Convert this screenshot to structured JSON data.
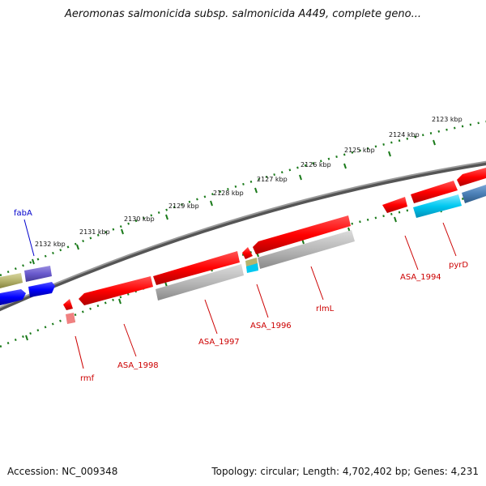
{
  "title": "Aeromonas salmonicida subsp. salmonicida A449, complete geno...",
  "footer": {
    "accession": "Accession: NC_009348",
    "topology": "Topology: circular; Length: 4,702,402 bp; Genes: 4,231"
  },
  "ticks": [
    "2123 kbp",
    "2124 kbp",
    "2125 kbp",
    "2126 kbp",
    "2127 kbp",
    "2128 kbp",
    "2129 kbp",
    "2130 kbp",
    "2131 kbp",
    "2132 kbp"
  ],
  "genes": {
    "fabA": "fabA",
    "rmf": "rmf",
    "asa1998": "ASA_1998",
    "asa1997": "ASA_1997",
    "asa1996": "ASA_1996",
    "rlmL": "rlmL",
    "asa1994": "ASA_1994",
    "pyrD": "pyrD"
  },
  "colors": {
    "backbone": "#808080",
    "tick": "#1a7a1a",
    "cds_red": "#ff0000",
    "cds_gray": "#b8b8b8",
    "cds_blue": "#0000ff",
    "cds_cyan": "#00c8f0",
    "cds_violet": "#6a5acd",
    "cds_olive": "#b5b36e",
    "cds_steel": "#4a7fb5",
    "label_red": "#cc0000",
    "label_blue": "#0000cc"
  }
}
